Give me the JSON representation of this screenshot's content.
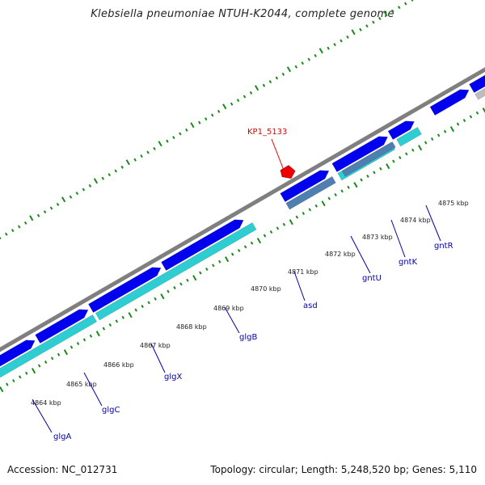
{
  "header": {
    "title": "Klebsiella pneumoniae NTUH-K2044, complete genome"
  },
  "footer": {
    "accession": "Accession: NC_012731",
    "summary": "Topology: circular; Length: 5,248,520 bp; Genes: 5,110"
  },
  "colors": {
    "backbone": "#7f7f7f",
    "cds": "#0000ee",
    "cds_alt": "#4f7fb0",
    "rrna": "#2ecdd1",
    "gray_gene": "#bdbdbd",
    "highlight": "#ee0000",
    "ticks": "#1a8a1a",
    "gene_label": "#0000aa",
    "highlight_label": "#dd0000"
  },
  "kbp_ticks": [
    "4864 kbp",
    "4865 kbp",
    "4866 kbp",
    "4867 kbp",
    "4868 kbp",
    "4869 kbp",
    "4870 kbp",
    "4871 kbp",
    "4872 kbp",
    "4873 kbp",
    "4874 kbp",
    "4875 kbp"
  ],
  "gene_labels": [
    "glgA",
    "glgC",
    "glgX",
    "glgB",
    "asd",
    "gntU",
    "gntK",
    "gntR"
  ],
  "highlight_label": "KP1_5133"
}
